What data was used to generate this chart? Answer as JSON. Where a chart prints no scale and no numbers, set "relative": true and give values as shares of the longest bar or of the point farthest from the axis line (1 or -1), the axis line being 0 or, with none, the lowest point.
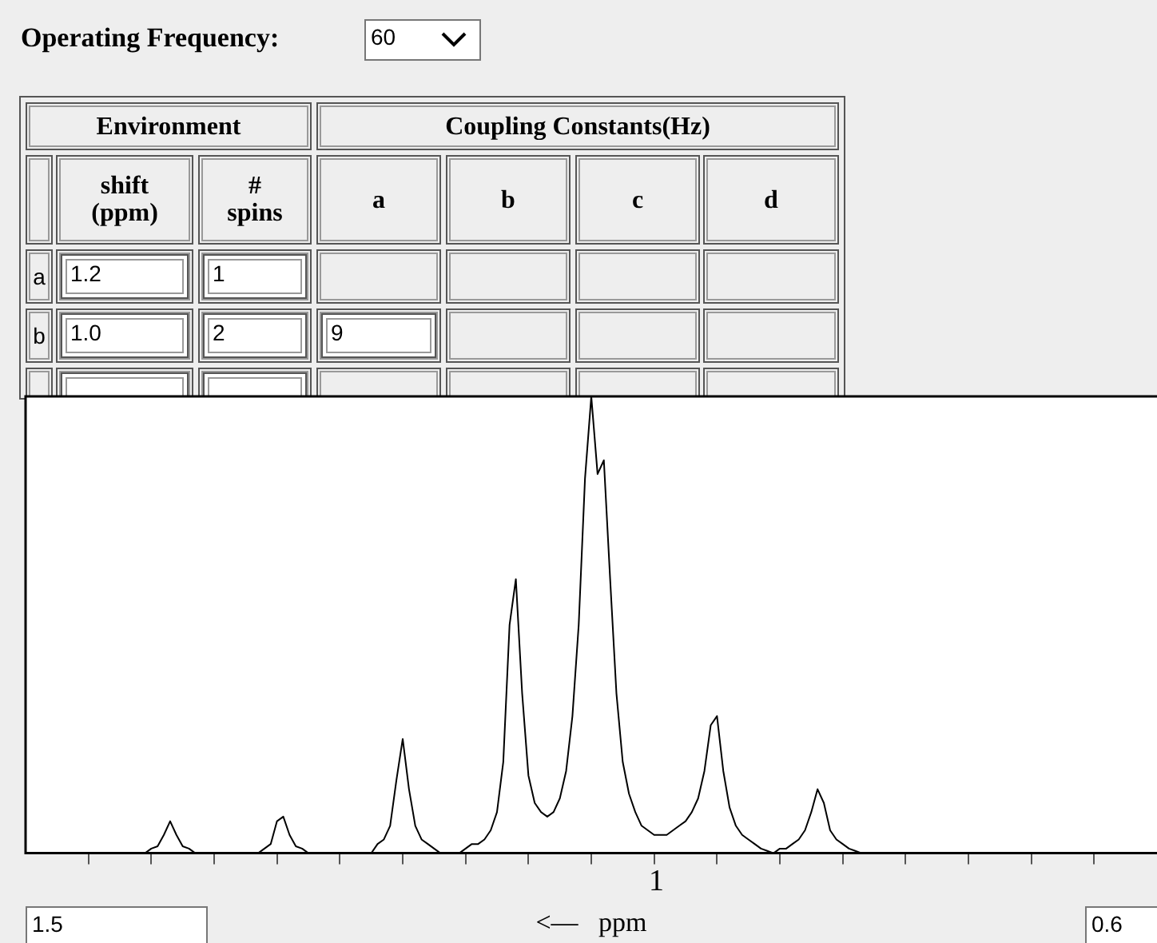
{
  "chart_data": {
    "type": "line",
    "relative": true,
    "marker": "none",
    "xlabel": "<—   ppm",
    "annotations": [
      "Operating Frequency:",
      "60",
      "Environment",
      "Coupling Constants(Hz)",
      "shift\n(ppm)",
      "#\nspins",
      "a",
      "b",
      "c",
      "d",
      "a",
      "1.2",
      "1",
      "b",
      "1.0",
      "2",
      "9",
      "1",
      "1.5",
      "0.6"
    ],
    "categories": [
      null,
      null,
      null,
      null,
      null,
      null,
      null,
      null,
      null,
      null,
      null,
      null,
      null,
      null,
      null,
      null,
      null,
      null,
      null,
      null,
      null,
      null,
      null,
      null,
      null,
      null,
      null,
      null,
      null,
      null,
      null,
      null,
      null,
      null,
      null,
      null,
      null,
      null,
      null,
      null,
      null,
      null,
      null,
      null,
      null,
      null,
      null,
      null,
      null,
      null,
      null,
      null,
      null,
      null,
      null,
      null,
      null,
      null,
      null,
      null,
      null,
      null,
      null,
      null,
      null,
      null,
      null,
      null,
      null,
      null,
      null,
      null,
      null,
      null,
      null,
      null,
      null,
      null,
      null,
      null,
      null,
      null,
      null,
      null,
      null,
      null,
      null,
      null,
      null,
      null,
      null,
      null,
      null,
      null,
      null,
      null,
      null,
      null,
      null,
      null,
      null,
      null,
      null,
      null,
      null,
      null,
      null,
      null,
      null,
      null,
      null,
      null,
      null,
      null,
      null,
      null,
      null,
      null,
      null,
      null,
      null,
      null,
      null,
      null,
      null,
      null,
      null,
      null,
      null,
      null,
      null,
      null,
      null,
      null,
      null,
      null,
      null,
      null,
      null,
      null,
      null,
      null,
      null,
      null,
      null,
      null,
      null,
      null,
      null,
      null,
      null,
      null,
      null,
      null,
      null,
      null,
      null,
      null,
      null,
      null,
      null,
      null,
      null,
      null,
      null,
      null,
      null,
      null,
      null,
      null,
      null,
      null,
      null,
      null,
      null,
      null,
      null,
      null,
      null,
      null,
      null
    ],
    "series": [
      {
        "color": "#000000",
        "values": [
          0,
          0,
          0,
          0,
          0,
          0,
          0,
          0,
          0,
          0,
          0,
          0,
          0,
          0,
          0,
          0,
          0,
          0,
          0,
          0,
          0.01,
          0.015,
          0.04,
          0.07,
          0.04,
          0.015,
          0.01,
          0,
          0,
          0,
          0,
          0,
          0,
          0,
          0,
          0,
          0,
          0,
          0.01,
          0.02,
          0.07,
          0.08,
          0.04,
          0.015,
          0.01,
          0,
          0,
          0,
          0,
          0,
          0,
          0,
          0,
          0,
          0,
          0,
          0.02,
          0.03,
          0.06,
          0.16,
          0.25,
          0.14,
          0.06,
          0.03,
          0.02,
          0.01,
          0,
          0,
          0,
          0,
          0.01,
          0.02,
          0.02,
          0.03,
          0.05,
          0.09,
          0.2,
          0.5,
          0.6,
          0.35,
          0.17,
          0.11,
          0.09,
          0.08,
          0.09,
          0.12,
          0.18,
          0.3,
          0.5,
          0.82,
          1,
          0.83,
          0.86,
          0.6,
          0.35,
          0.2,
          0.13,
          0.09,
          0.06,
          0.05,
          0.04,
          0.04,
          0.04,
          0.05,
          0.06,
          0.07,
          0.09,
          0.12,
          0.18,
          0.28,
          0.3,
          0.18,
          0.1,
          0.06,
          0.04,
          0.03,
          0.02,
          0.01,
          0.005,
          0,
          0.01,
          0.01,
          0.02,
          0.03,
          0.05,
          0.09,
          0.14,
          0.11,
          0.05,
          0.03,
          0.02,
          0.01,
          0.005,
          0,
          0,
          0,
          0,
          0,
          0,
          0,
          0,
          0,
          0,
          0,
          0,
          0,
          0,
          0,
          0,
          0,
          0,
          0,
          0,
          0,
          0,
          0,
          0,
          0,
          0,
          0,
          0,
          0,
          0,
          0,
          0,
          0,
          0,
          0,
          0,
          0,
          0,
          0,
          0,
          0,
          0,
          0,
          0,
          0,
          0,
          0,
          0
        ]
      }
    ]
  }
}
